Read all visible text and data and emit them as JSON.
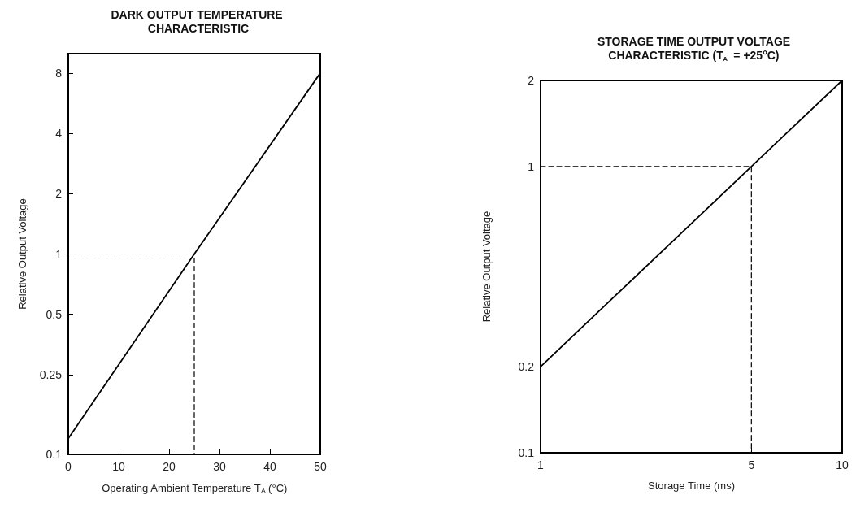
{
  "chart_data": [
    {
      "type": "line",
      "title": "DARK OUTPUT TEMPERATURE CHARACTERISTIC",
      "xlabel": "Operating Ambient Temperature T$_{A}$ (°C)",
      "ylabel": "Relative Output Voltage",
      "xlim": [
        0,
        50
      ],
      "ylim": [
        0.1,
        10
      ],
      "xticks": [
        0,
        10,
        20,
        30,
        40,
        50
      ],
      "yticks": [
        0.1,
        0.25,
        0.5,
        1,
        2,
        4,
        8
      ],
      "log": "y",
      "grid": false,
      "marker": "none",
      "series": [
        {
          "color": "#000000",
          "line_style": "solid",
          "x": [
            0,
            25,
            50
          ],
          "values": [
            0.12,
            1,
            8
          ]
        },
        {
          "color": "#000000",
          "line_style": "dashed",
          "x": [
            0,
            25,
            25
          ],
          "values": [
            1,
            1,
            0.1
          ]
        }
      ]
    },
    {
      "type": "line",
      "title": "STORAGE TIME OUTPUT VOLTAGE CHARACTERISTIC (T$_{A}$ = +25°C)",
      "xlabel": "Storage Time (ms)",
      "ylabel": "Relative Output Voltage",
      "xlim": [
        1,
        10
      ],
      "ylim": [
        0.1,
        2
      ],
      "xticks": [
        1,
        5,
        10
      ],
      "yticks": [
        0.1,
        0.2,
        1,
        2
      ],
      "log": "xy",
      "grid": false,
      "marker": "none",
      "series": [
        {
          "color": "#000000",
          "line_style": "solid",
          "x": [
            1,
            5,
            10
          ],
          "values": [
            0.2,
            1,
            2
          ]
        },
        {
          "color": "#000000",
          "line_style": "dashed",
          "x": [
            1,
            5,
            5
          ],
          "values": [
            1,
            1,
            0.1
          ]
        }
      ]
    }
  ]
}
